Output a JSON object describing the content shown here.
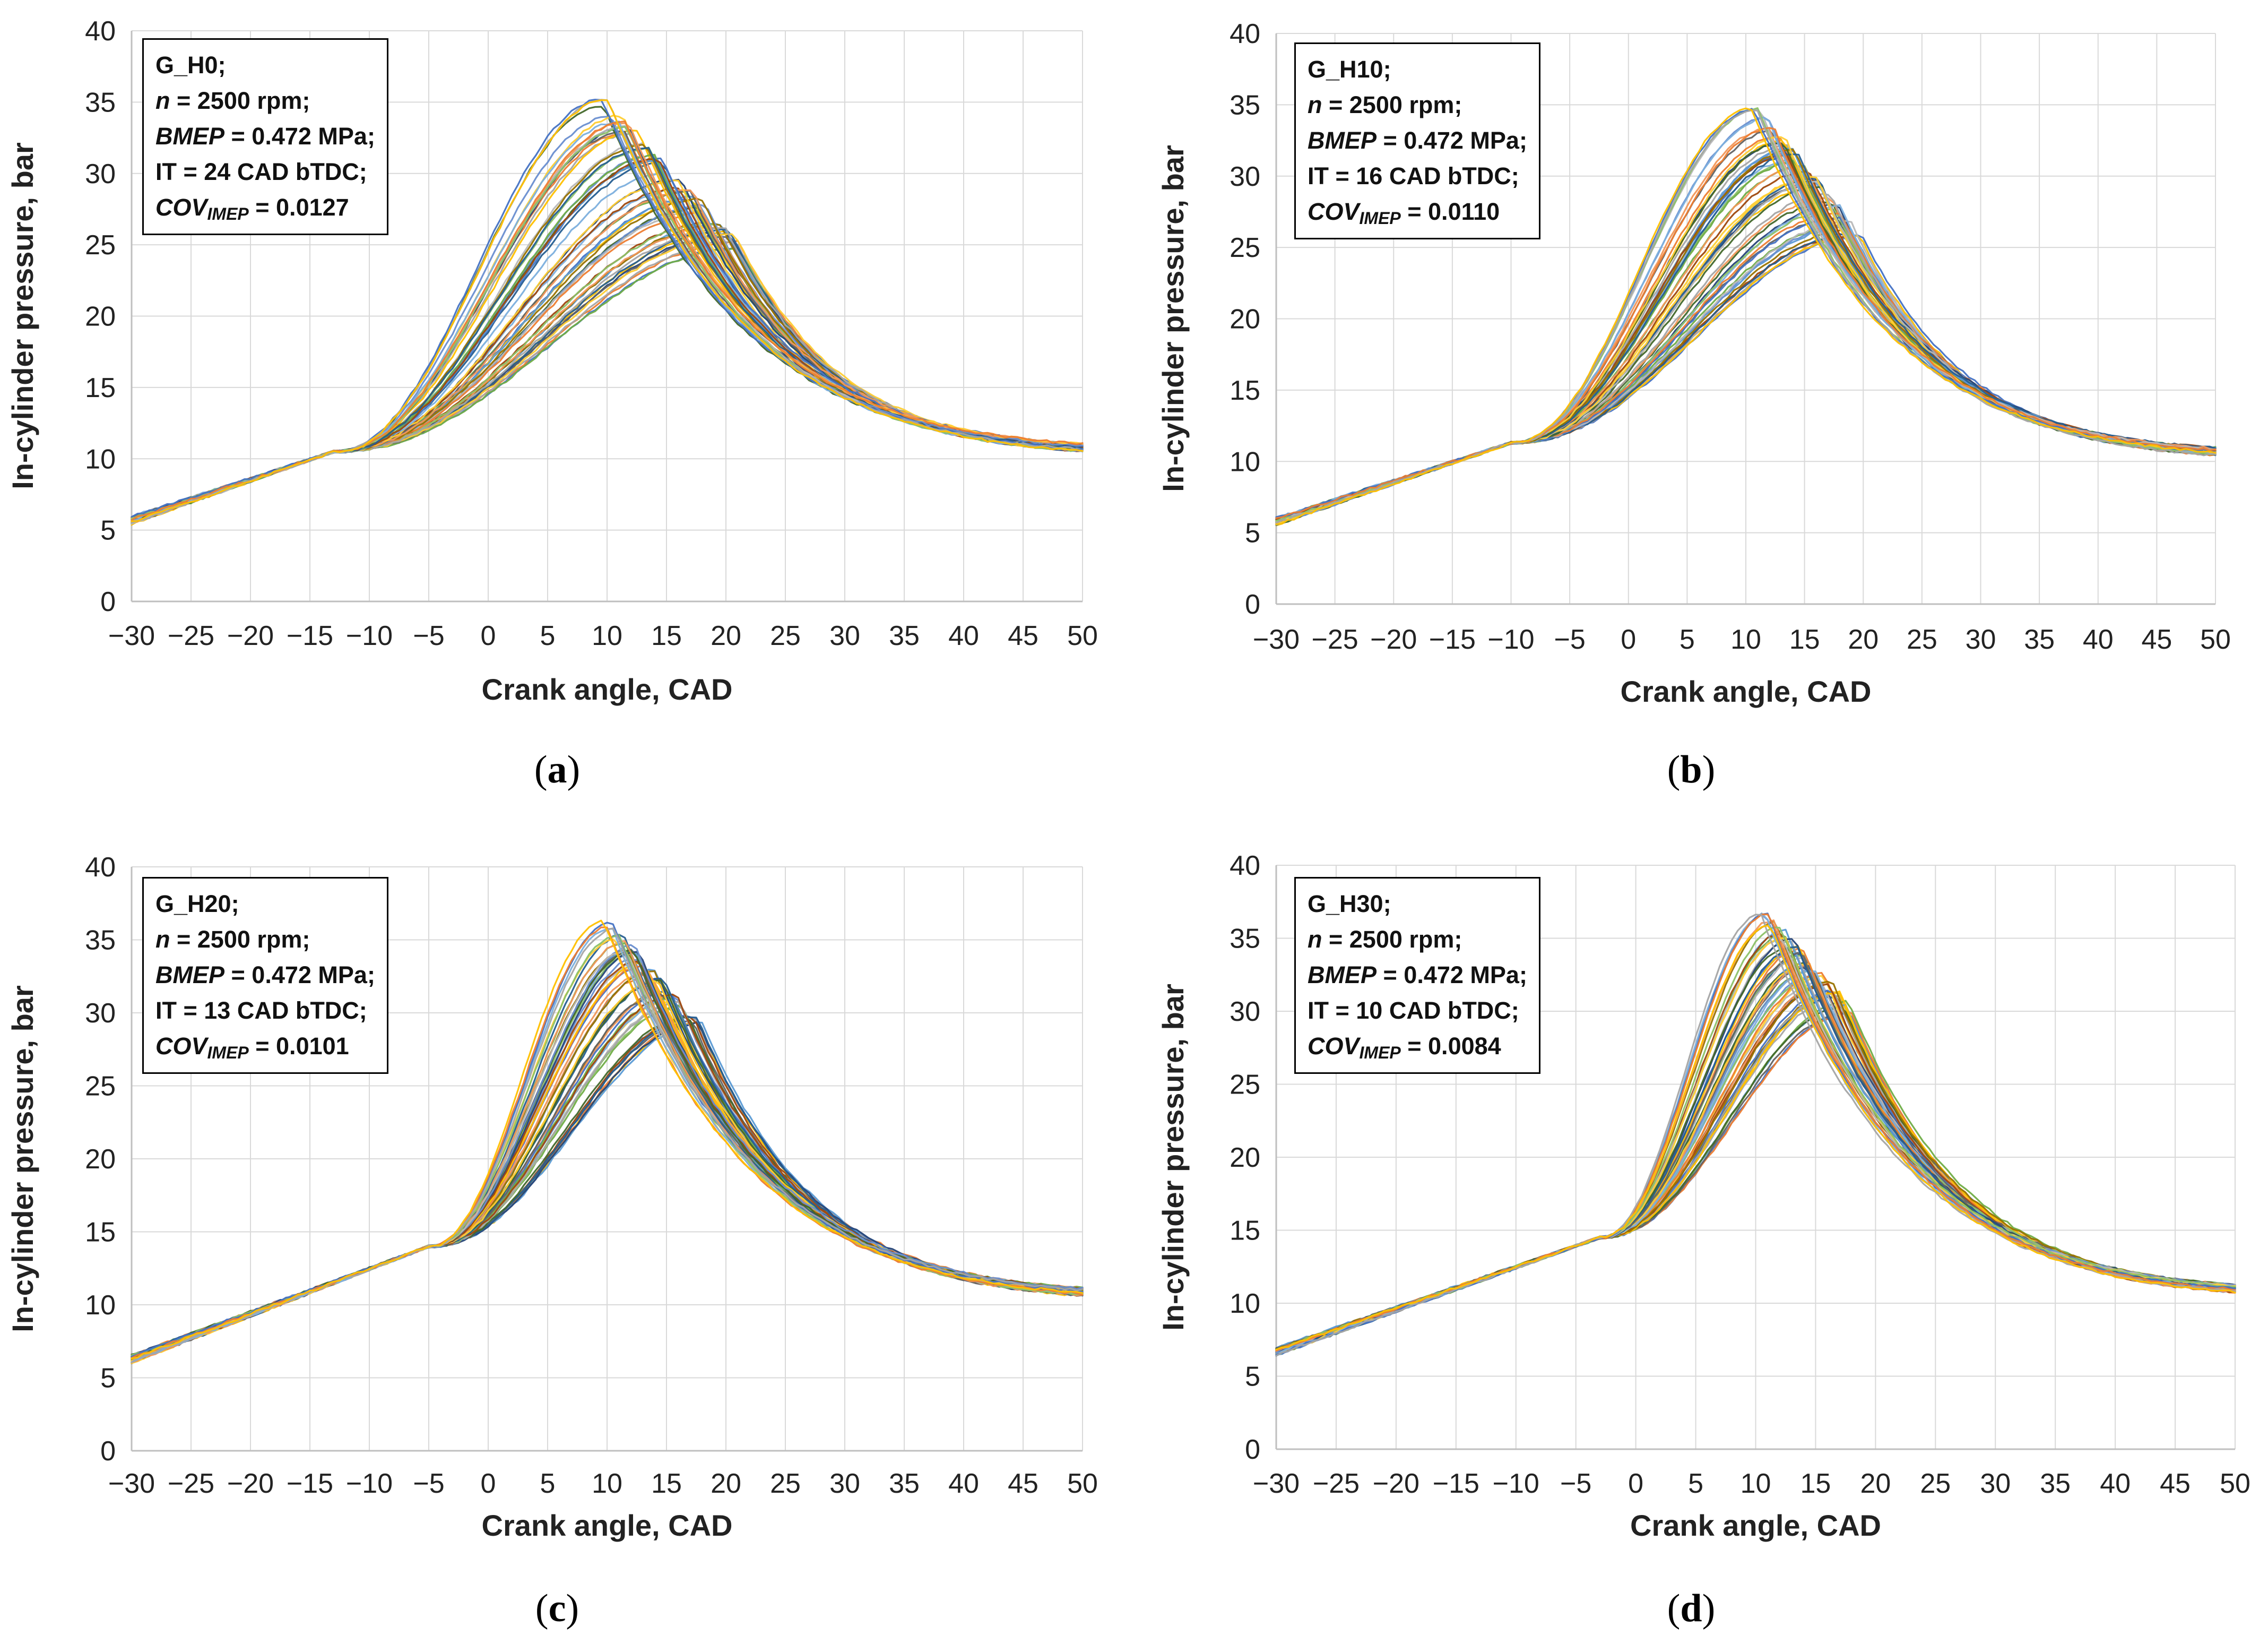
{
  "chart_data": [
    {
      "type": "line",
      "panel_label": "a",
      "xlabel": "Crank angle, CAD",
      "ylabel": "In-cylinder pressure, bar",
      "xlim": [
        -30,
        50
      ],
      "ylim": [
        0,
        40
      ],
      "xticks": [
        "−30",
        "−25",
        "−20",
        "−15",
        "−10",
        "−5",
        "0",
        "5",
        "10",
        "15",
        "20",
        "25",
        "30",
        "35",
        "40",
        "45",
        "50"
      ],
      "yticks": [
        "0",
        "5",
        "10",
        "15",
        "20",
        "25",
        "30",
        "35",
        "40"
      ],
      "grid": true,
      "legend": {
        "fuel": "G_H0;",
        "speed_var": "n",
        "speed_val": " = 2500 rpm;",
        "bmep_var": "BMEP",
        "bmep_val": " = 0.472 MPa;",
        "ignition": "IT = 24 CAD bTDC;",
        "cov_var": "COV",
        "cov_sub": "IMEP",
        "cov_val": " = 0.0127"
      },
      "start_pressure": 5.7,
      "knee_angle": -13,
      "knee_pressure": 10.5,
      "end_pressure": 10.8,
      "series_envelope": {
        "peak_pressure_range": [
          24.2,
          35.2
        ],
        "peak_angle_range": [
          9.5,
          22
        ]
      }
    },
    {
      "type": "line",
      "panel_label": "b",
      "xlabel": "Crank angle, CAD",
      "ylabel": "In-cylinder pressure, bar",
      "xlim": [
        -30,
        50
      ],
      "ylim": [
        0,
        40
      ],
      "xticks": [
        "−30",
        "−25",
        "−20",
        "−15",
        "−10",
        "−5",
        "0",
        "5",
        "10",
        "15",
        "20",
        "25",
        "30",
        "35",
        "40",
        "45",
        "50"
      ],
      "yticks": [
        "0",
        "5",
        "10",
        "15",
        "20",
        "25",
        "30",
        "35",
        "40"
      ],
      "grid": true,
      "legend": {
        "fuel": "G_H10;",
        "speed_var": "n",
        "speed_val": " = 2500 rpm;",
        "bmep_var": "BMEP",
        "bmep_val": " = 0.472 MPa;",
        "ignition": "IT = 16 CAD bTDC;",
        "cov_var": "COV",
        "cov_sub": "IMEP",
        "cov_val": " = 0.0110"
      },
      "start_pressure": 5.8,
      "knee_angle": -10,
      "knee_pressure": 11.3,
      "end_pressure": 10.7,
      "series_envelope": {
        "peak_pressure_range": [
          25.8,
          34.7
        ],
        "peak_angle_range": [
          11,
          19.5
        ]
      }
    },
    {
      "type": "line",
      "panel_label": "c",
      "xlabel": "Crank angle, CAD",
      "ylabel": "In-cylinder pressure, bar",
      "xlim": [
        -30,
        50
      ],
      "ylim": [
        0,
        40
      ],
      "xticks": [
        "−30",
        "−25",
        "−20",
        "−15",
        "−10",
        "−5",
        "0",
        "5",
        "10",
        "15",
        "20",
        "25",
        "30",
        "35",
        "40",
        "45",
        "50"
      ],
      "yticks": [
        "0",
        "5",
        "10",
        "15",
        "20",
        "25",
        "30",
        "35",
        "40"
      ],
      "grid": true,
      "legend": {
        "fuel": "G_H20;",
        "speed_var": "n",
        "speed_val": " = 2500 rpm;",
        "bmep_var": "BMEP",
        "bmep_val": " = 0.472 MPa;",
        "ignition": "IT = 13 CAD bTDC;",
        "cov_var": "COV",
        "cov_sub": "IMEP",
        "cov_val": " = 0.0101"
      },
      "start_pressure": 6.3,
      "knee_angle": -5,
      "knee_pressure": 14.0,
      "end_pressure": 10.9,
      "series_envelope": {
        "peak_pressure_range": [
          29.3,
          36.3
        ],
        "peak_angle_range": [
          10,
          17.5
        ]
      }
    },
    {
      "type": "line",
      "panel_label": "d",
      "xlabel": "Crank angle, CAD",
      "ylabel": "In-cylinder pressure, bar",
      "xlim": [
        -30,
        50
      ],
      "ylim": [
        0,
        40
      ],
      "xticks": [
        "−30",
        "−25",
        "−20",
        "−15",
        "−10",
        "−5",
        "0",
        "5",
        "10",
        "15",
        "20",
        "25",
        "30",
        "35",
        "40",
        "45",
        "50"
      ],
      "yticks": [
        "0",
        "5",
        "10",
        "15",
        "20",
        "25",
        "30",
        "35",
        "40"
      ],
      "grid": true,
      "legend": {
        "fuel": "G_H30;",
        "speed_var": "n",
        "speed_val": " = 2500 rpm;",
        "bmep_var": "BMEP",
        "bmep_val": " = 0.472 MPa;",
        "ignition": "IT = 10 CAD bTDC;",
        "cov_var": "COV",
        "cov_sub": "IMEP",
        "cov_val": " = 0.0084"
      },
      "start_pressure": 6.7,
      "knee_angle": -3,
      "knee_pressure": 14.5,
      "end_pressure": 11.0,
      "series_envelope": {
        "peak_pressure_range": [
          29.9,
          36.7
        ],
        "peak_angle_range": [
          11,
          18
        ]
      }
    }
  ],
  "palette": [
    "#4472C4",
    "#ED7D31",
    "#A5A5A5",
    "#FFC000",
    "#5B9BD5",
    "#70AD47",
    "#264478",
    "#9E480E",
    "#636363",
    "#997300",
    "#255E91",
    "#43682B",
    "#698ED0",
    "#F1975A",
    "#B7B7B7",
    "#FFCD33",
    "#7CAFDD",
    "#8CC168"
  ]
}
